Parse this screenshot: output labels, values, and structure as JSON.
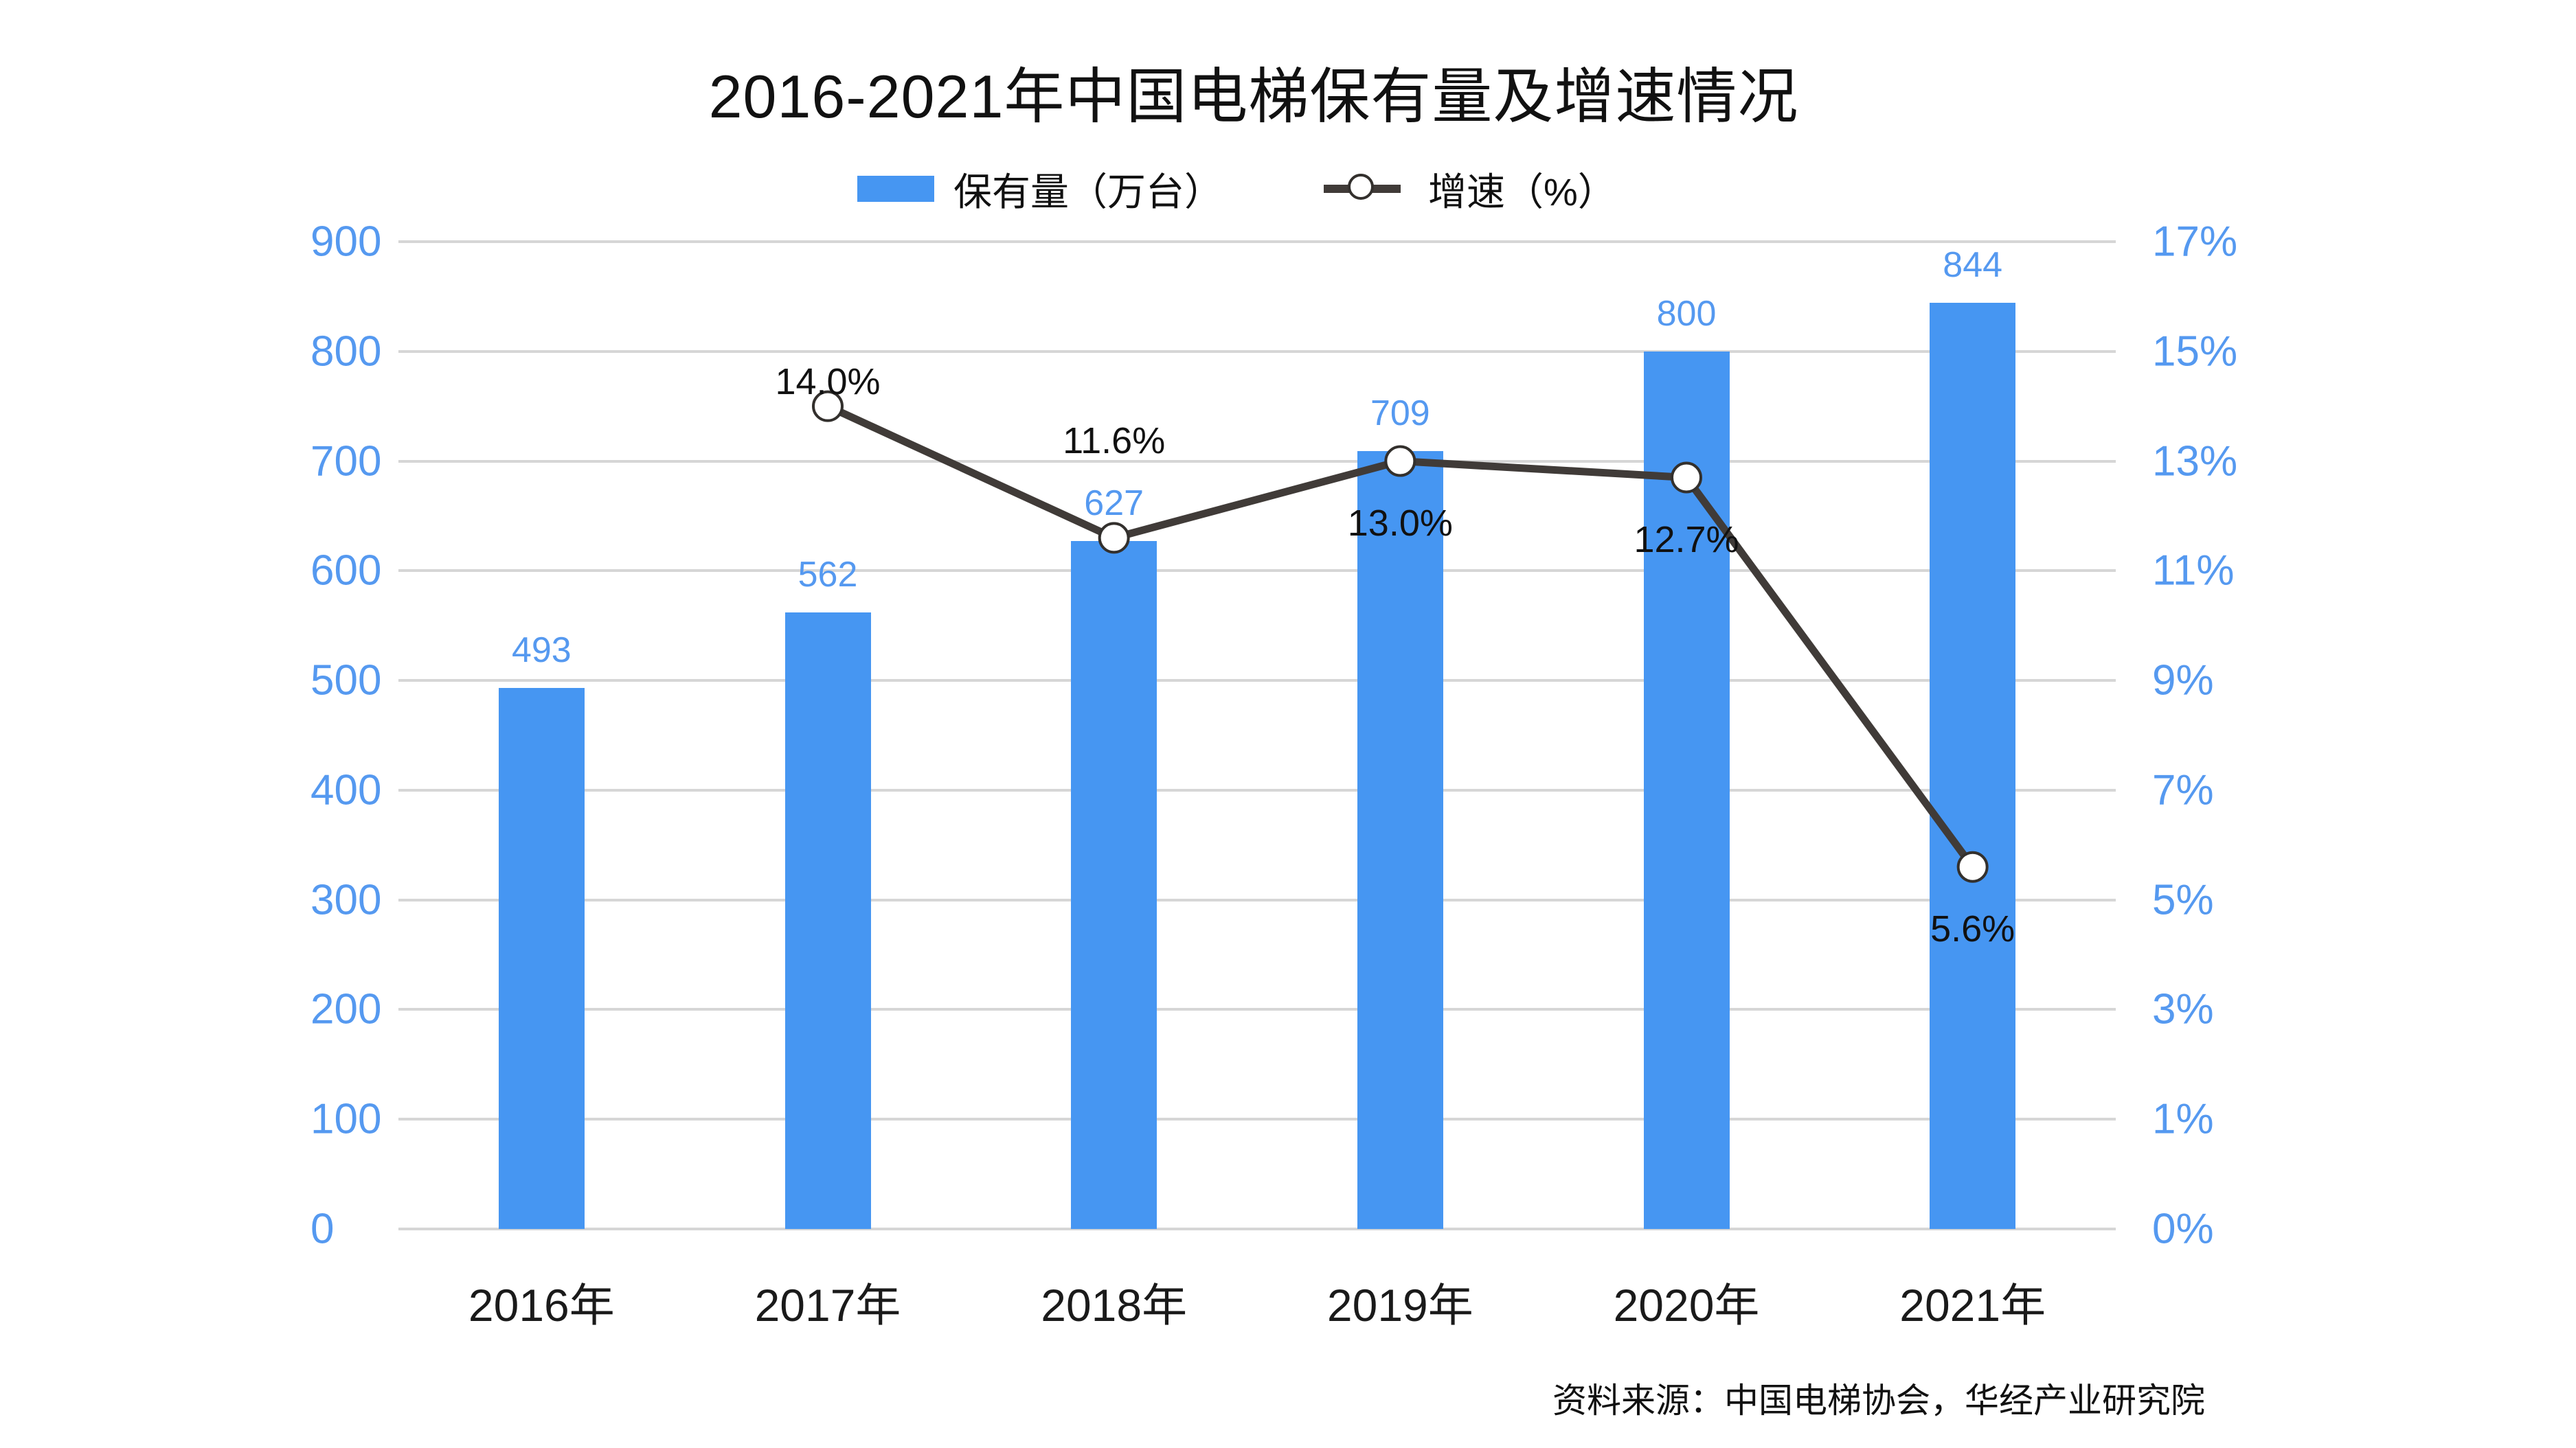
{
  "title": "2016-2021年中国电梯保有量及增速情况",
  "source_note": "资料来源：中国电梯协会，华经产业研究院",
  "legend": {
    "bar_label": "保有量（万台）",
    "line_label": "增速（%）"
  },
  "colors": {
    "bar": "#4696F2",
    "axis_text": "#5599F0",
    "line": "#403B38",
    "marker_stroke": "#33302D",
    "marker_fill": "#FFFFFF",
    "grid": "#D6D6D6",
    "text": "#111111"
  },
  "chart_data": {
    "type": "bar+line",
    "title": "2016-2021年中国电梯保有量及增速情况",
    "categories": [
      "2016年",
      "2017年",
      "2018年",
      "2019年",
      "2020年",
      "2021年"
    ],
    "series": [
      {
        "name": "保有量（万台）",
        "type": "bar",
        "axis": "left",
        "values": [
          493,
          562,
          627,
          709,
          800,
          844
        ],
        "value_labels": [
          "493",
          "562",
          "627",
          "709",
          "800",
          "844"
        ]
      },
      {
        "name": "增速（%）",
        "type": "line",
        "axis": "right",
        "values": [
          null,
          14.0,
          11.6,
          13.0,
          12.7,
          5.6
        ],
        "point_labels": [
          null,
          "14.0%",
          "11.6%",
          "13.0%",
          "12.7%",
          "5.6%"
        ]
      }
    ],
    "left_axis": {
      "min": 0,
      "max": 900,
      "tick_labels": [
        "0",
        "100",
        "200",
        "300",
        "400",
        "500",
        "600",
        "700",
        "800",
        "900"
      ]
    },
    "right_axis": {
      "tick_labels": [
        "0%",
        "1%",
        "3%",
        "5%",
        "7%",
        "9%",
        "11%",
        "13%",
        "15%",
        "17%"
      ]
    },
    "grid": true,
    "legend_position": "top",
    "layout_hints": {
      "pct_label_dy": [
        0,
        -36,
        -141,
        90,
        90,
        90
      ],
      "bar_label_dy": -55
    }
  }
}
